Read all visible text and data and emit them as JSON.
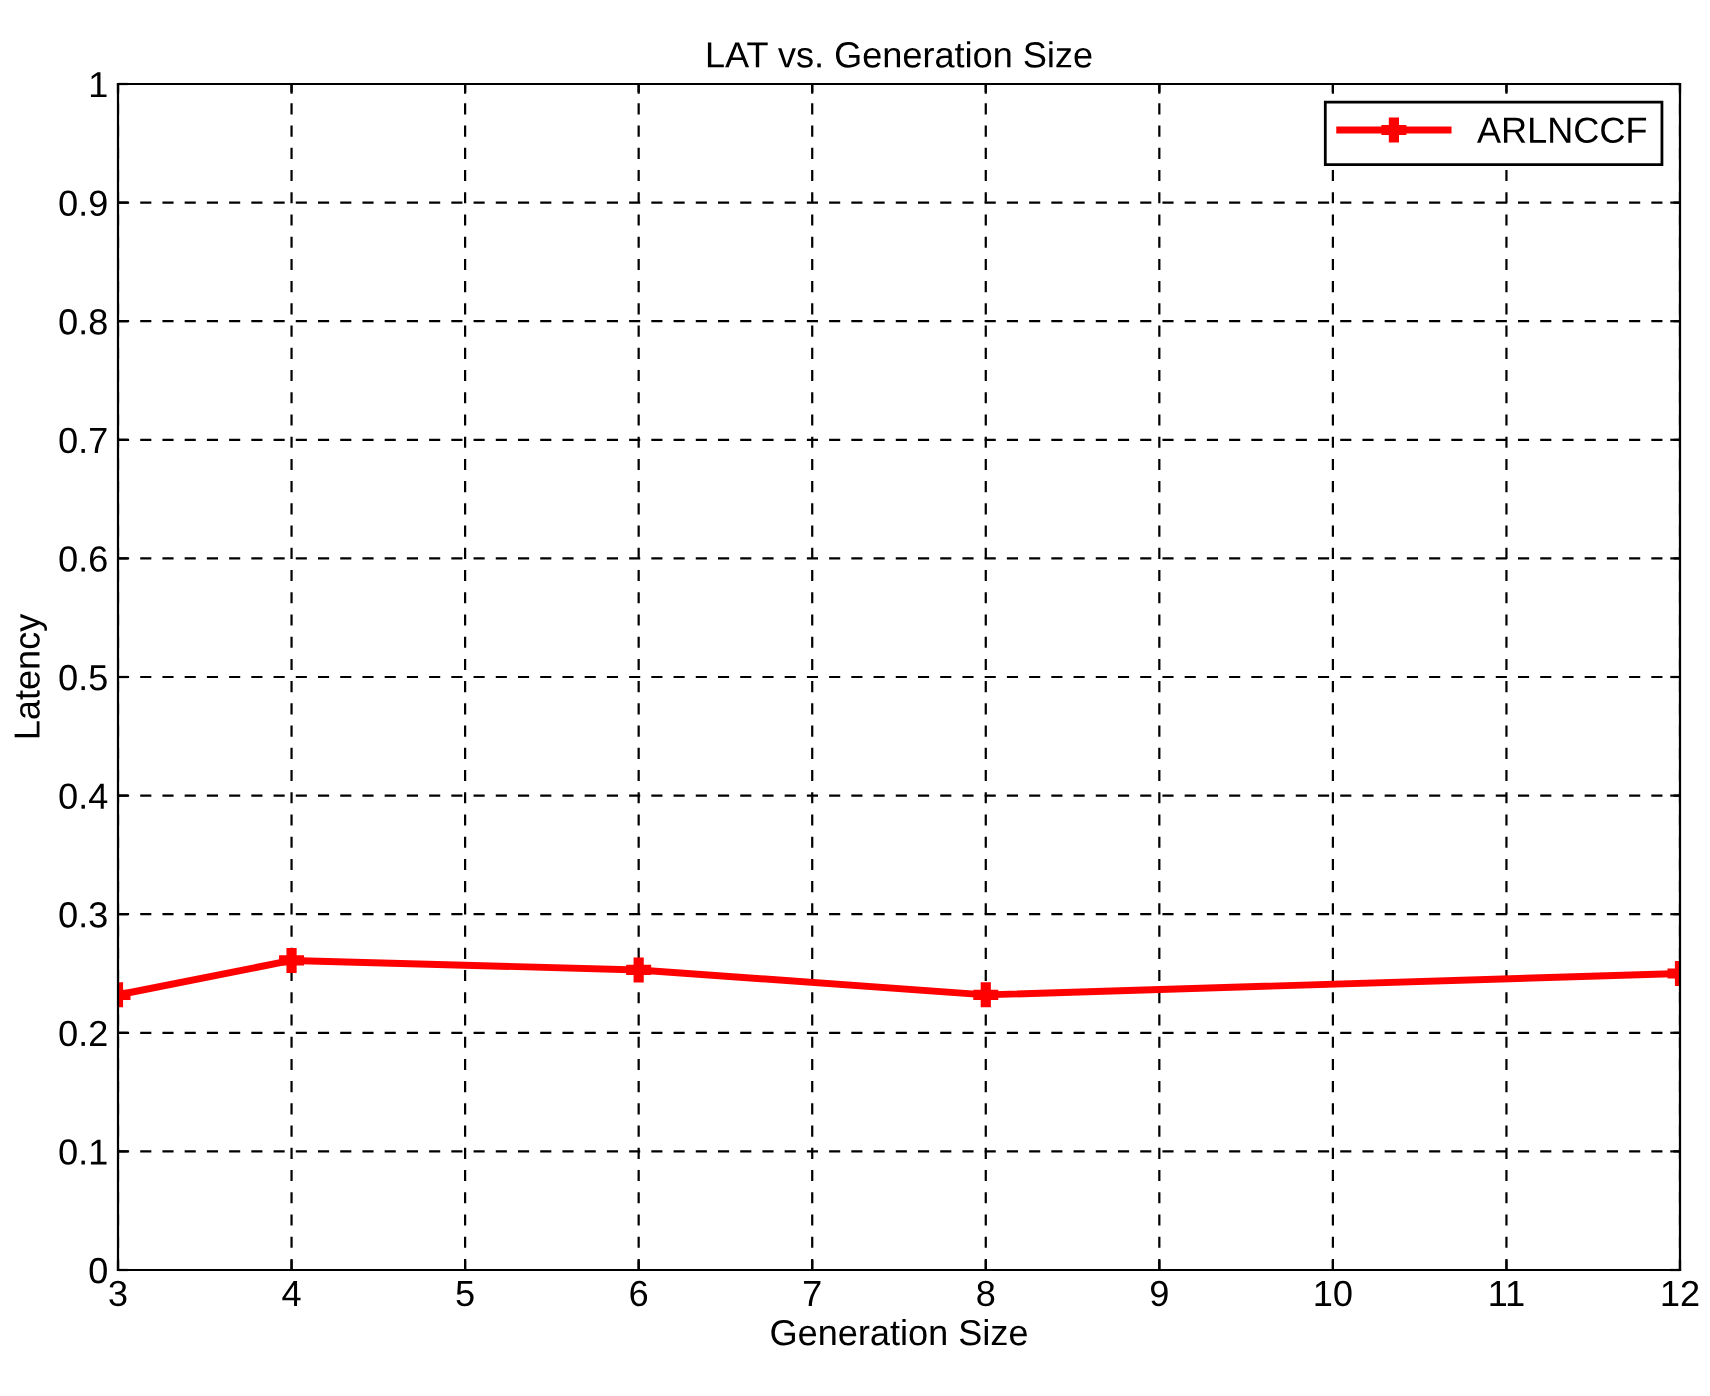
{
  "chart_data": {
    "type": "line",
    "title": "LAT vs. Generation Size",
    "xlabel": "Generation Size",
    "ylabel": "Latency",
    "x": [
      3,
      4,
      6,
      8,
      12
    ],
    "series": [
      {
        "name": "ARLNCCF",
        "color": "#ff0000",
        "values": [
          0.232,
          0.261,
          0.253,
          0.232,
          0.25
        ]
      }
    ],
    "xlim": [
      3,
      12
    ],
    "xticks": [
      3,
      4,
      5,
      6,
      7,
      8,
      9,
      10,
      11,
      12
    ],
    "ylim": [
      0,
      1
    ],
    "yticks": [
      0,
      0.1,
      0.2,
      0.3,
      0.4,
      0.5,
      0.6,
      0.7,
      0.8,
      0.9,
      1
    ],
    "grid": true,
    "legend": "top right",
    "marker": "cross",
    "line_style": "solid"
  }
}
